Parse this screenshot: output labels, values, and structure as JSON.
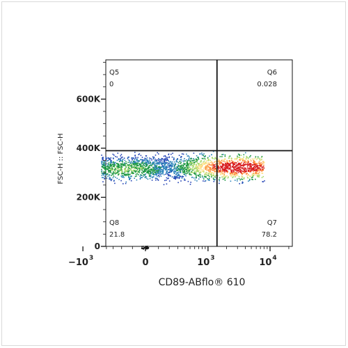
{
  "chart_data": {
    "type": "scatter",
    "subtype": "flow-cytometry-density",
    "xlabel": "CD89-ABflo® 610",
    "ylabel": "FSC-H :: FSC-H",
    "x_scale": "biexponential",
    "y_scale": "linear",
    "ylim": [
      0,
      760000
    ],
    "y_ticks": [
      {
        "value": 0,
        "label": "0"
      },
      {
        "value": 200000,
        "label": "200K"
      },
      {
        "value": 400000,
        "label": "400K"
      },
      {
        "value": 600000,
        "label": "600K"
      }
    ],
    "x_ticks": [
      {
        "value": -1000,
        "base": "−10",
        "exp": "3"
      },
      {
        "value": 0,
        "base": "0",
        "exp": ""
      },
      {
        "value": 1000,
        "base": "10",
        "exp": "3"
      },
      {
        "value": 10000,
        "base": "10",
        "exp": "4"
      }
    ],
    "gates": {
      "x": 1400,
      "y": 390000
    },
    "quadrants": [
      {
        "name": "Q5",
        "value": "0",
        "position": "top-left"
      },
      {
        "name": "Q6",
        "value": "0.028",
        "position": "top-right"
      },
      {
        "name": "Q7",
        "value": "78.2",
        "position": "bottom-right"
      },
      {
        "name": "Q8",
        "value": "21.8",
        "position": "bottom-left"
      }
    ],
    "population": {
      "x_range": [
        -500,
        8000
      ],
      "y_range": [
        270000,
        375000
      ],
      "peak_x": 3000,
      "peak_y": 325000
    },
    "grid": false,
    "legend": "none"
  }
}
